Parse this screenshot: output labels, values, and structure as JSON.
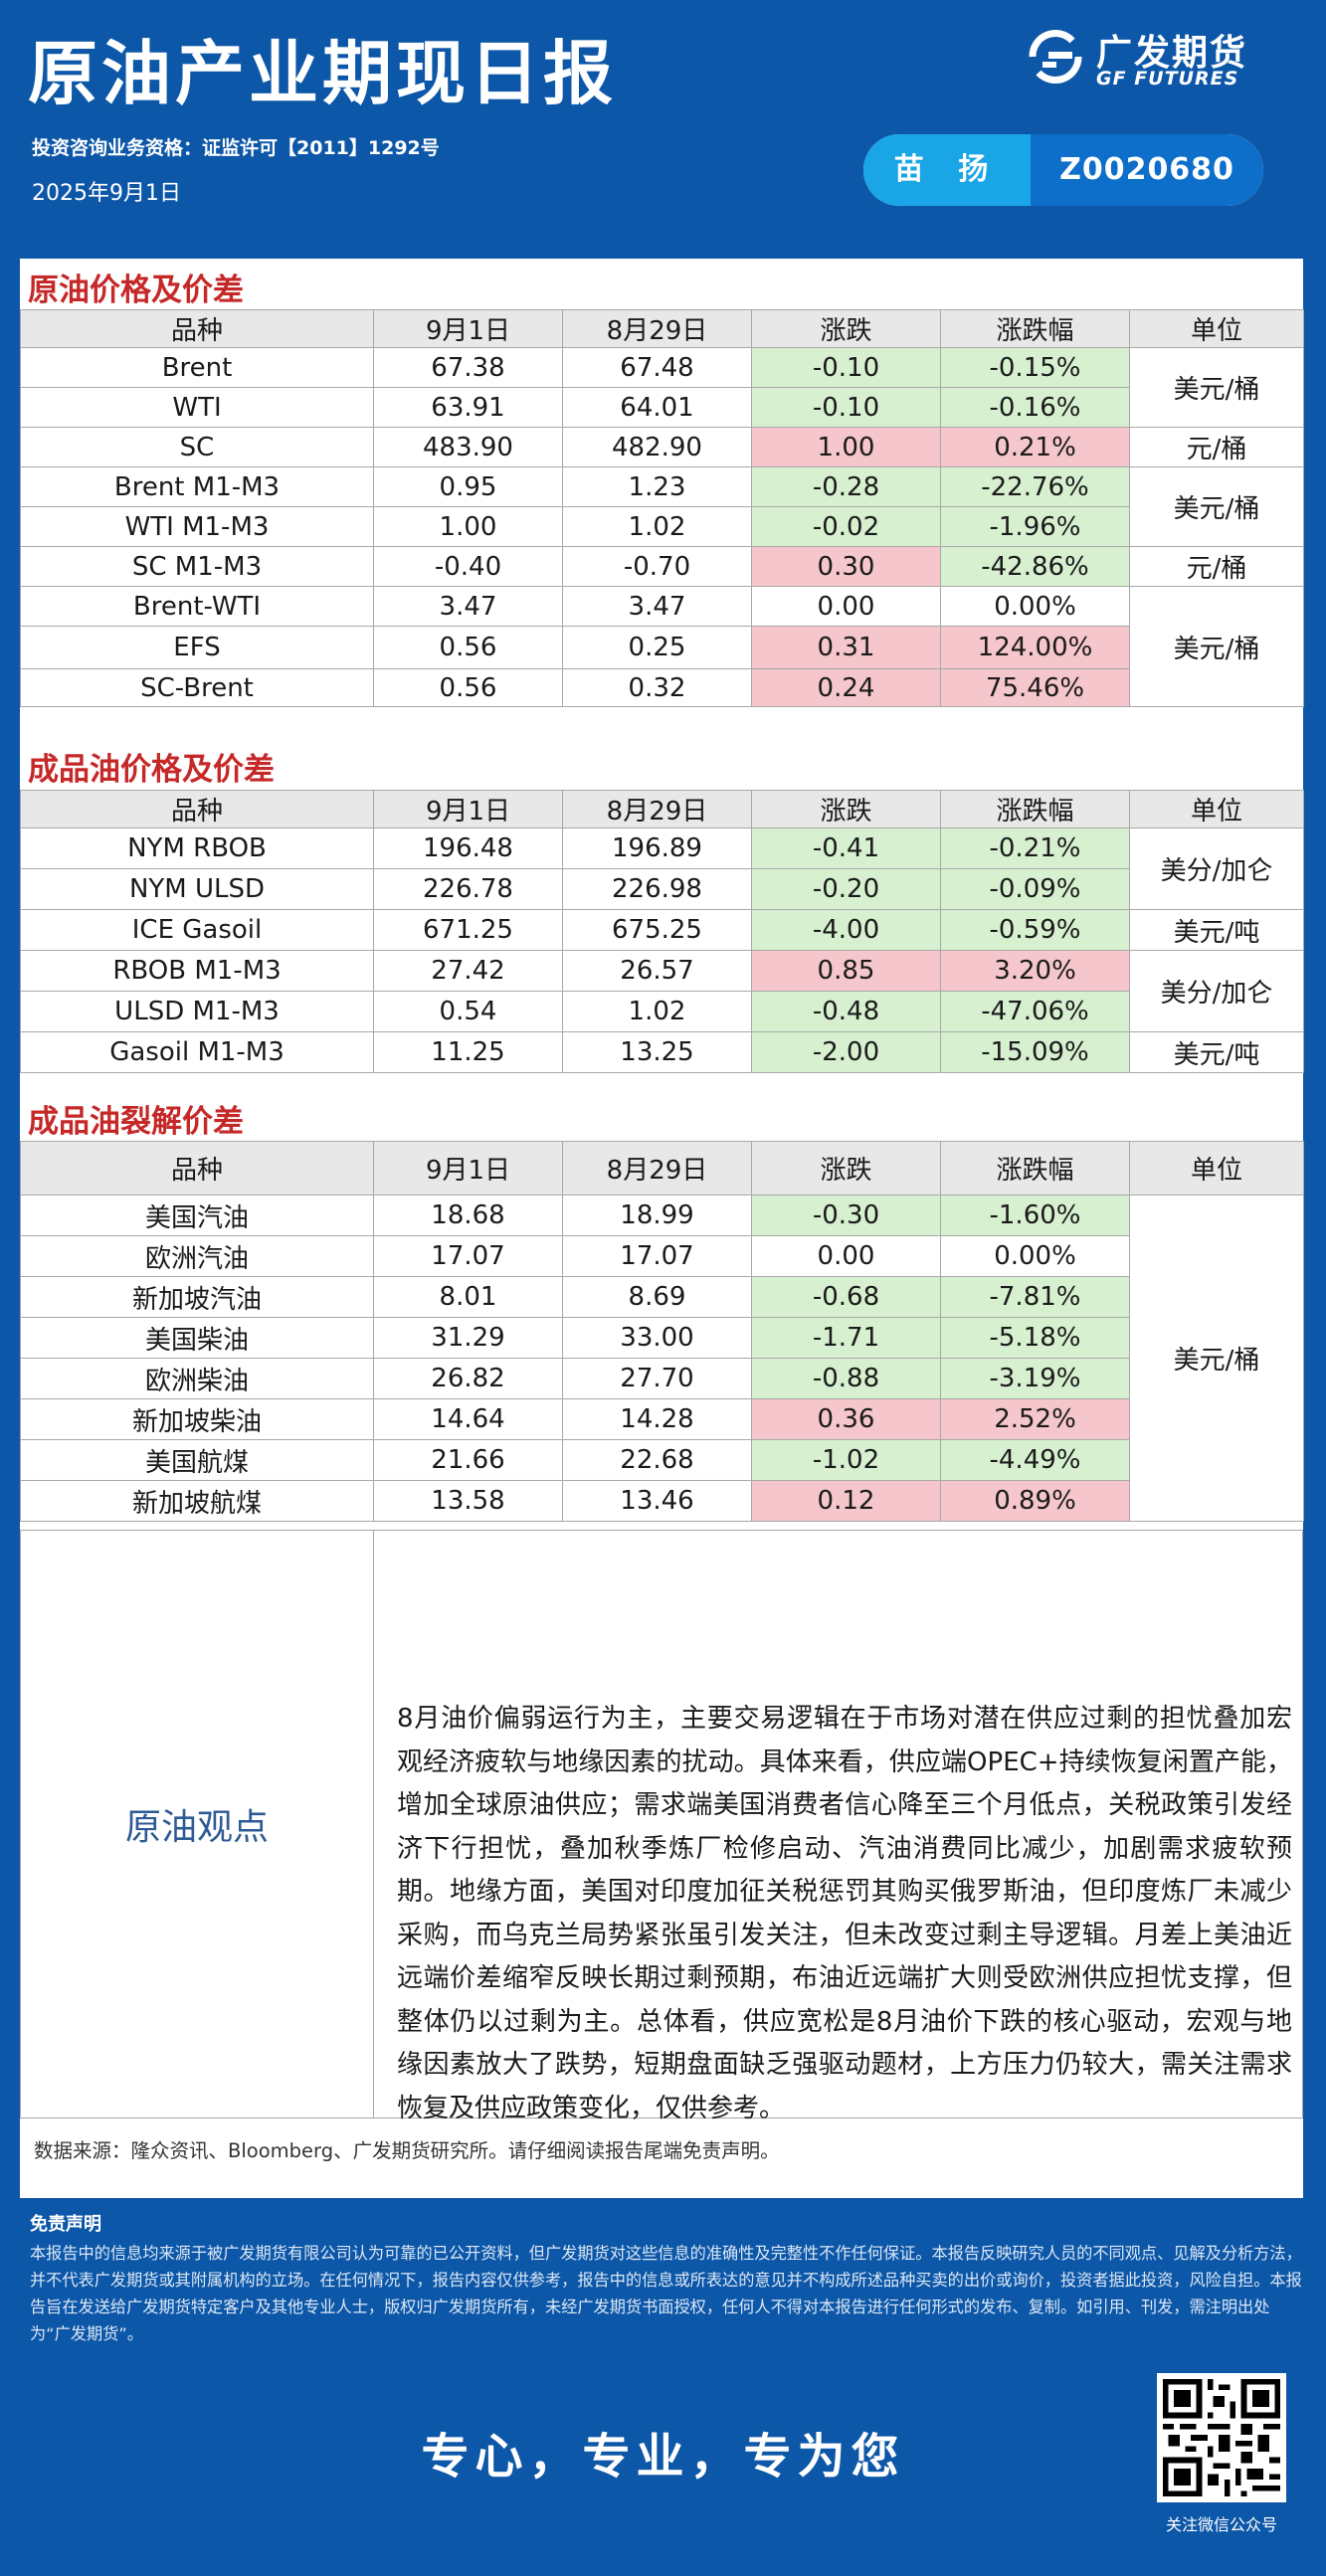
{
  "header": {
    "title": "原油产业期现日报",
    "logo_cn": "广发期货",
    "logo_en": "GF FUTURES",
    "qualification": "投资咨询业务资格：证监许可【2011】1292号",
    "date": "2025年9月1日",
    "analyst_name": "苗 扬",
    "analyst_id": "Z0020680"
  },
  "colors": {
    "brand_blue": "#0d57a8",
    "section_red": "#c62828",
    "down_green": "#d6f0d0",
    "up_red": "#f5c6cb"
  },
  "columns": [
    "品种",
    "9月1日",
    "8月29日",
    "涨跌",
    "涨跌幅",
    "单位"
  ],
  "crude": {
    "title": "原油价格及价差",
    "rows": [
      {
        "name": "Brent",
        "d1": "67.38",
        "d2": "67.48",
        "chg": "-0.10",
        "pct": "-0.15%",
        "chg_color": "green",
        "pct_color": "green"
      },
      {
        "name": "WTI",
        "d1": "63.91",
        "d2": "64.01",
        "chg": "-0.10",
        "pct": "-0.16%",
        "chg_color": "green",
        "pct_color": "green"
      },
      {
        "name": "SC",
        "d1": "483.90",
        "d2": "482.90",
        "chg": "1.00",
        "pct": "0.21%",
        "chg_color": "red",
        "pct_color": "red"
      },
      {
        "name": "Brent  M1-M3",
        "d1": "0.95",
        "d2": "1.23",
        "chg": "-0.28",
        "pct": "-22.76%",
        "chg_color": "green",
        "pct_color": "green"
      },
      {
        "name": "WTI  M1-M3",
        "d1": "1.00",
        "d2": "1.02",
        "chg": "-0.02",
        "pct": "-1.96%",
        "chg_color": "green",
        "pct_color": "green"
      },
      {
        "name": "SC  M1-M3",
        "d1": "-0.40",
        "d2": "-0.70",
        "chg": "0.30",
        "pct": "-42.86%",
        "chg_color": "red",
        "pct_color": "green"
      },
      {
        "name": "Brent-WTI",
        "d1": "3.47",
        "d2": "3.47",
        "chg": "0.00",
        "pct": "0.00%",
        "chg_color": "plain",
        "pct_color": "plain"
      },
      {
        "name": "EFS",
        "d1": "0.56",
        "d2": "0.25",
        "chg": "0.31",
        "pct": "124.00%",
        "chg_color": "red",
        "pct_color": "red"
      },
      {
        "name": "SC-Brent",
        "d1": "0.56",
        "d2": "0.32",
        "chg": "0.24",
        "pct": "75.46%",
        "chg_color": "red",
        "pct_color": "red"
      }
    ],
    "units": [
      "美元/桶",
      "元/桶",
      "美元/桶",
      "元/桶",
      "美元/桶"
    ]
  },
  "products": {
    "title": "成品油价格及价差",
    "rows": [
      {
        "name": "NYM RBOB",
        "d1": "196.48",
        "d2": "196.89",
        "chg": "-0.41",
        "pct": "-0.21%",
        "chg_color": "green",
        "pct_color": "green"
      },
      {
        "name": "NYM ULSD",
        "d1": "226.78",
        "d2": "226.98",
        "chg": "-0.20",
        "pct": "-0.09%",
        "chg_color": "green",
        "pct_color": "green"
      },
      {
        "name": "ICE Gasoil",
        "d1": "671.25",
        "d2": "675.25",
        "chg": "-4.00",
        "pct": "-0.59%",
        "chg_color": "green",
        "pct_color": "green"
      },
      {
        "name": "RBOB  M1-M3",
        "d1": "27.42",
        "d2": "26.57",
        "chg": "0.85",
        "pct": "3.20%",
        "chg_color": "red",
        "pct_color": "red"
      },
      {
        "name": "ULSD  M1-M3",
        "d1": "0.54",
        "d2": "1.02",
        "chg": "-0.48",
        "pct": "-47.06%",
        "chg_color": "green",
        "pct_color": "green"
      },
      {
        "name": "Gasoil  M1-M3",
        "d1": "11.25",
        "d2": "13.25",
        "chg": "-2.00",
        "pct": "-15.09%",
        "chg_color": "green",
        "pct_color": "green"
      }
    ],
    "units": [
      "美分/加仑",
      "美元/吨",
      "美分/加仑",
      "美元/吨"
    ]
  },
  "cracks": {
    "title": "成品油裂解价差",
    "rows": [
      {
        "name": "美国汽油",
        "d1": "18.68",
        "d2": "18.99",
        "chg": "-0.30",
        "pct": "-1.60%",
        "chg_color": "green",
        "pct_color": "green"
      },
      {
        "name": "欧洲汽油",
        "d1": "17.07",
        "d2": "17.07",
        "chg": "0.00",
        "pct": "0.00%",
        "chg_color": "plain",
        "pct_color": "plain"
      },
      {
        "name": "新加坡汽油",
        "d1": "8.01",
        "d2": "8.69",
        "chg": "-0.68",
        "pct": "-7.81%",
        "chg_color": "green",
        "pct_color": "green"
      },
      {
        "name": "美国柴油",
        "d1": "31.29",
        "d2": "33.00",
        "chg": "-1.71",
        "pct": "-5.18%",
        "chg_color": "green",
        "pct_color": "green"
      },
      {
        "name": "欧洲柴油",
        "d1": "26.82",
        "d2": "27.70",
        "chg": "-0.88",
        "pct": "-3.19%",
        "chg_color": "green",
        "pct_color": "green"
      },
      {
        "name": "新加坡柴油",
        "d1": "14.64",
        "d2": "14.28",
        "chg": "0.36",
        "pct": "2.52%",
        "chg_color": "red",
        "pct_color": "red"
      },
      {
        "name": "美国航煤",
        "d1": "21.66",
        "d2": "22.68",
        "chg": "-1.02",
        "pct": "-4.49%",
        "chg_color": "green",
        "pct_color": "green"
      },
      {
        "name": "新加坡航煤",
        "d1": "13.58",
        "d2": "13.46",
        "chg": "0.12",
        "pct": "0.89%",
        "chg_color": "red",
        "pct_color": "red"
      }
    ],
    "unit": "美元/桶"
  },
  "view": {
    "label": "原油观点",
    "text": "8月油价偏弱运行为主，主要交易逻辑在于市场对潜在供应过剩的担忧叠加宏观经济疲软与地缘因素的扰动。具体来看，供应端OPEC+持续恢复闲置产能，增加全球原油供应；需求端美国消费者信心降至三个月低点，关税政策引发经济下行担忧，叠加秋季炼厂检修启动、汽油消费同比减少，加剧需求疲软预期。地缘方面，美国对印度加征关税惩罚其购买俄罗斯油，但印度炼厂未减少采购，而乌克兰局势紧张虽引发关注，但未改变过剩主导逻辑。月差上美油近远端价差缩窄反映长期过剩预期，布油近远端扩大则受欧洲供应担忧支撑，但整体仍以过剩为主。总体看，供应宽松是8月油价下跌的核心驱动，宏观与地缘因素放大了跌势，短期盘面缺乏强驱动题材，上方压力仍较大，需关注需求恢复及供应政策变化，仅供参考。"
  },
  "source": "数据来源：隆众资讯、Bloomberg、广发期货研究所。请仔细阅读报告尾端免责声明。",
  "disclaimer": {
    "title": "免责声明",
    "text": "本报告中的信息均来源于被广发期货有限公司认为可靠的已公开资料，但广发期货对这些信息的准确性及完整性不作任何保证。本报告反映研究人员的不同观点、见解及分析方法，并不代表广发期货或其附属机构的立场。在任何情况下，报告内容仅供参考，报告中的信息或所表达的意见并不构成所述品种买卖的出价或询价，投资者据此投资，风险自担。本报告旨在发送给广发期货特定客户及其他专业人士，版权归广发期货所有，未经广发期货书面授权，任何人不得对本报告进行任何形式的发布、复制。如引用、刊发，需注明出处为“广发期货”。"
  },
  "slogan": "专心，专业，专为您",
  "qr_caption": "关注微信公众号"
}
